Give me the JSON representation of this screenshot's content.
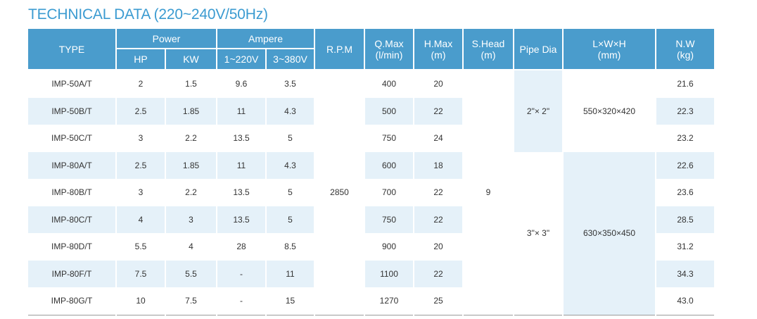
{
  "title": "TECHNICAL DATA (220~240V/50Hz)",
  "table": {
    "header": {
      "type": "TYPE",
      "power": "Power",
      "hp": "HP",
      "kw": "KW",
      "ampere": "Ampere",
      "a220": "1~220V",
      "a380": "3~380V",
      "rpm": "R.P.M",
      "qmax": [
        "Q.Max",
        "(l/min)"
      ],
      "hmax": [
        "H.Max",
        "(m)"
      ],
      "shead": [
        "S.Head",
        "(m)"
      ],
      "pipe_dia": "Pipe Dia",
      "dims": [
        "L×W×H",
        "(mm)"
      ],
      "nw": [
        "N.W",
        "(kg)"
      ]
    },
    "rpm": "2850",
    "s_head": "9",
    "groups": [
      {
        "pipe_dia": "2\"× 2\"",
        "dims": "550×320×420"
      },
      {
        "pipe_dia": "3\"× 3\"",
        "dims": "630×350×450"
      }
    ],
    "rows": [
      [
        "IMP-50A/T",
        "2",
        "1.5",
        "9.6",
        "3.5",
        "400",
        "20",
        "21.6"
      ],
      [
        "IMP-50B/T",
        "2.5",
        "1.85",
        "11",
        "4.3",
        "500",
        "22",
        "22.3"
      ],
      [
        "IMP-50C/T",
        "3",
        "2.2",
        "13.5",
        "5",
        "750",
        "24",
        "23.2"
      ],
      [
        "IMP-80A/T",
        "2.5",
        "1.85",
        "11",
        "4.3",
        "600",
        "18",
        "22.6"
      ],
      [
        "IMP-80B/T",
        "3",
        "2.2",
        "13.5",
        "5",
        "700",
        "22",
        "23.6"
      ],
      [
        "IMP-80C/T",
        "4",
        "3",
        "13.5",
        "5",
        "750",
        "22",
        "28.5"
      ],
      [
        "IMP-80D/T",
        "5.5",
        "4",
        "28",
        "8.5",
        "900",
        "20",
        "31.2"
      ],
      [
        "IMP-80F/T",
        "7.5",
        "5.5",
        "-",
        "11",
        "1100",
        "22",
        "34.3"
      ],
      [
        "IMP-80G/T",
        "10",
        "7.5",
        "-",
        "15",
        "1270",
        "25",
        "43.0"
      ]
    ]
  }
}
